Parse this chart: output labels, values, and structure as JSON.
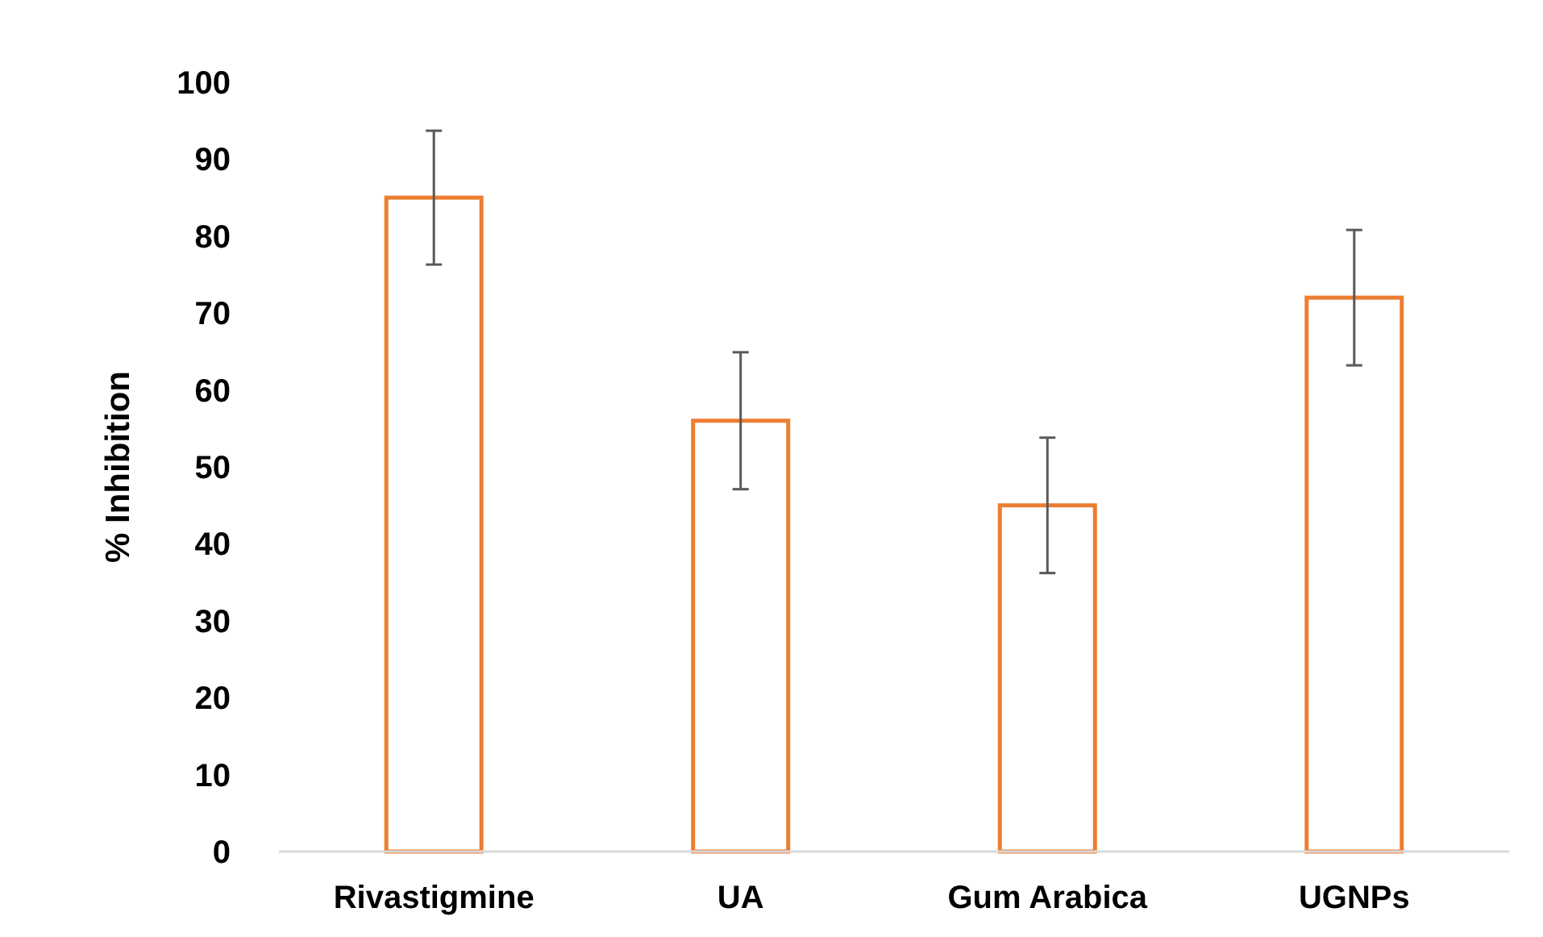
{
  "chart_data": {
    "type": "bar",
    "ylabel": "% Inhibition",
    "categories": [
      "Rivastigmine",
      "UA",
      "Gum Arabica",
      "UGNPs"
    ],
    "values": [
      85,
      56,
      45,
      72
    ],
    "errors": [
      8.7,
      8.9,
      8.8,
      8.8
    ],
    "color": "#ed7d31",
    "ylim": [
      0,
      100
    ],
    "yticks": [
      0,
      10,
      20,
      30,
      40,
      50,
      60,
      70,
      80,
      90,
      100
    ],
    "grid": false
  }
}
